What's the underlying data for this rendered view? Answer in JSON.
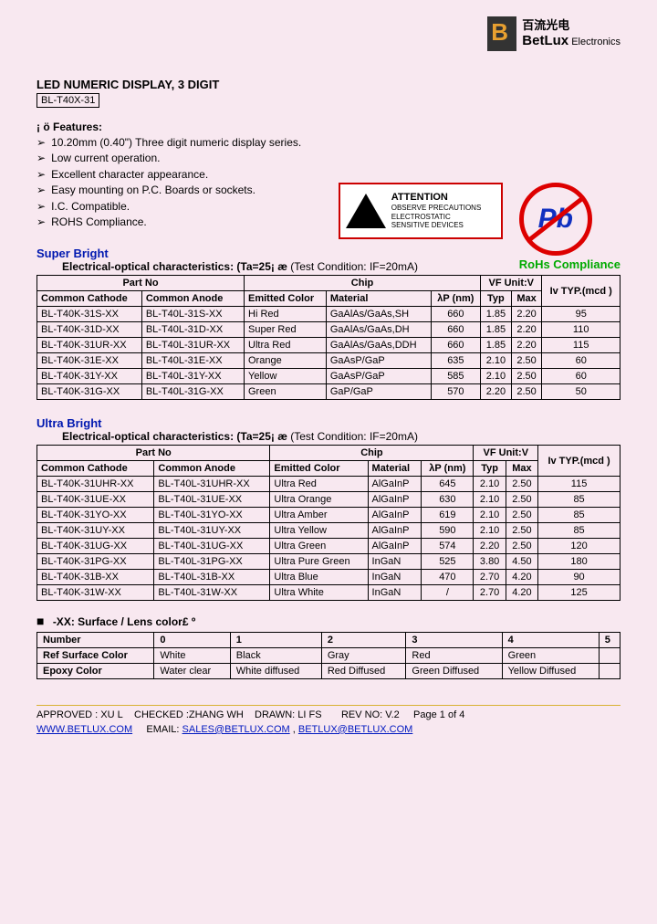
{
  "brand": {
    "cn": "百流光电",
    "en": "BetLux",
    "sub": "Electronics"
  },
  "header": {
    "title": "LED NUMERIC DISPLAY, 3 DIGIT",
    "part": "BL-T40X-31"
  },
  "features": {
    "head": "¡ ö Features:",
    "items": [
      "10.20mm (0.40\") Three digit numeric display series.",
      "Low current operation.",
      "Excellent character appearance.",
      "Easy mounting on P.C. Boards or sockets.",
      "I.C. Compatible.",
      "ROHS Compliance."
    ]
  },
  "attention": {
    "title": "ATTENTION",
    "l1": "OBSERVE PRECAUTIONS",
    "l2": "ELECTROSTATIC",
    "l3": "SENSITIVE DEVICES"
  },
  "pb": {
    "symbol": "Pb",
    "label": "RoHs Compliance"
  },
  "sb": {
    "title": "Super Bright",
    "subtitle": "Electrical-optical characteristics: (Ta=25¡ æ",
    "cond": "(Test Condition: IF=20mA)",
    "cols": {
      "part": "Part No",
      "cc": "Common Cathode",
      "ca": "Common Anode",
      "chip": "Chip",
      "color": "Emitted Color",
      "mat": "Material",
      "lam": "λP (nm)",
      "vf": "VF Unit:V",
      "typ": "Typ",
      "max": "Max",
      "iv": "Iv TYP.(mcd )"
    },
    "rows": [
      {
        "cc": "BL-T40K-31S-XX",
        "ca": "BL-T40L-31S-XX",
        "col": "Hi Red",
        "mat": "GaAlAs/GaAs,SH",
        "lam": "660",
        "typ": "1.85",
        "max": "2.20",
        "iv": "95"
      },
      {
        "cc": "BL-T40K-31D-XX",
        "ca": "BL-T40L-31D-XX",
        "col": "Super Red",
        "mat": "GaAlAs/GaAs,DH",
        "lam": "660",
        "typ": "1.85",
        "max": "2.20",
        "iv": "110"
      },
      {
        "cc": "BL-T40K-31UR-XX",
        "ca": "BL-T40L-31UR-XX",
        "col": "Ultra Red",
        "mat": "GaAlAs/GaAs,DDH",
        "lam": "660",
        "typ": "1.85",
        "max": "2.20",
        "iv": "115"
      },
      {
        "cc": "BL-T40K-31E-XX",
        "ca": "BL-T40L-31E-XX",
        "col": "Orange",
        "mat": "GaAsP/GaP",
        "lam": "635",
        "typ": "2.10",
        "max": "2.50",
        "iv": "60"
      },
      {
        "cc": "BL-T40K-31Y-XX",
        "ca": "BL-T40L-31Y-XX",
        "col": "Yellow",
        "mat": "GaAsP/GaP",
        "lam": "585",
        "typ": "2.10",
        "max": "2.50",
        "iv": "60"
      },
      {
        "cc": "BL-T40K-31G-XX",
        "ca": "BL-T40L-31G-XX",
        "col": "Green",
        "mat": "GaP/GaP",
        "lam": "570",
        "typ": "2.20",
        "max": "2.50",
        "iv": "50"
      }
    ]
  },
  "ub": {
    "title": "Ultra Bright",
    "subtitle": "Electrical-optical characteristics: (Ta=25¡ æ",
    "cond": "(Test Condition: IF=20mA)",
    "cols": {
      "part": "Part No",
      "cc": "Common Cathode",
      "ca": "Common Anode",
      "chip": "Chip",
      "color": "Emitted Color",
      "mat": "Material",
      "lam": "λP (nm)",
      "vf": "VF Unit:V",
      "typ": "Typ",
      "max": "Max",
      "iv": "Iv TYP.(mcd )"
    },
    "rows": [
      {
        "cc": "BL-T40K-31UHR-XX",
        "ca": "BL-T40L-31UHR-XX",
        "col": "Ultra Red",
        "mat": "AlGaInP",
        "lam": "645",
        "typ": "2.10",
        "max": "2.50",
        "iv": "115"
      },
      {
        "cc": "BL-T40K-31UE-XX",
        "ca": "BL-T40L-31UE-XX",
        "col": "Ultra Orange",
        "mat": "AlGaInP",
        "lam": "630",
        "typ": "2.10",
        "max": "2.50",
        "iv": "85"
      },
      {
        "cc": "BL-T40K-31YO-XX",
        "ca": "BL-T40L-31YO-XX",
        "col": "Ultra Amber",
        "mat": "AlGaInP",
        "lam": "619",
        "typ": "2.10",
        "max": "2.50",
        "iv": "85"
      },
      {
        "cc": "BL-T40K-31UY-XX",
        "ca": "BL-T40L-31UY-XX",
        "col": "Ultra Yellow",
        "mat": "AlGaInP",
        "lam": "590",
        "typ": "2.10",
        "max": "2.50",
        "iv": "85"
      },
      {
        "cc": "BL-T40K-31UG-XX",
        "ca": "BL-T40L-31UG-XX",
        "col": "Ultra Green",
        "mat": "AlGaInP",
        "lam": "574",
        "typ": "2.20",
        "max": "2.50",
        "iv": "120"
      },
      {
        "cc": "BL-T40K-31PG-XX",
        "ca": "BL-T40L-31PG-XX",
        "col": "Ultra Pure Green",
        "mat": "InGaN",
        "lam": "525",
        "typ": "3.80",
        "max": "4.50",
        "iv": "180"
      },
      {
        "cc": "BL-T40K-31B-XX",
        "ca": "BL-T40L-31B-XX",
        "col": "Ultra Blue",
        "mat": "InGaN",
        "lam": "470",
        "typ": "2.70",
        "max": "4.20",
        "iv": "90"
      },
      {
        "cc": "BL-T40K-31W-XX",
        "ca": "BL-T40L-31W-XX",
        "col": "Ultra White",
        "mat": "InGaN",
        "lam": "/",
        "typ": "2.70",
        "max": "4.20",
        "iv": "125"
      }
    ]
  },
  "lens": {
    "note": "-XX: Surface / Lens color£ º",
    "cols": [
      "Number",
      "0",
      "1",
      "2",
      "3",
      "4",
      "5"
    ],
    "r1": [
      "Ref Surface Color",
      "White",
      "Black",
      "Gray",
      "Red",
      "Green",
      ""
    ],
    "r2": [
      "Epoxy Color",
      "Water clear",
      "White diffused",
      "Red Diffused",
      "Green Diffused",
      "Yellow Diffused",
      ""
    ]
  },
  "footer": {
    "line1a": "APPROVED : XU L",
    "line1b": "CHECKED :ZHANG WH",
    "line1c": "DRAWN: LI FS",
    "line1d": "REV NO: V.2",
    "line1e": "Page 1 of 4",
    "url": "WWW.BETLUX.COM",
    "emaillbl": "EMAIL:",
    "email1": "SALES@BETLUX.COM",
    "email2": "BETLUX@BETLUX.COM"
  }
}
